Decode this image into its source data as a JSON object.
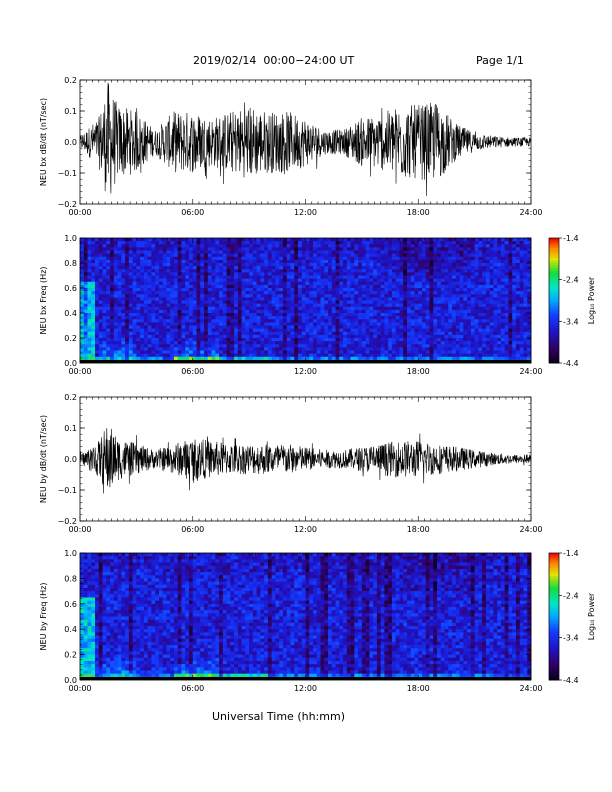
{
  "header": {
    "title": "2019/02/14  00:00−24:00 UT",
    "page": "Page 1/1"
  },
  "footer": {
    "xlabel": "Universal Time (hh:mm)"
  },
  "chart_data": [
    {
      "type": "line",
      "ylabel": "NEU bx dB/dt (nT/sec)",
      "xlim": [
        "00:00",
        "24:00"
      ],
      "x_ticks": [
        "00:00",
        "06:00",
        "12:00",
        "18:00",
        "24:00"
      ],
      "ylim": [
        -0.2,
        0.2
      ],
      "y_ticks": [
        "0.2",
        "0.1",
        "0.0",
        "−0.1",
        "−0.2"
      ],
      "series": [
        {
          "x_hours": [
            0,
            1,
            1.5,
            2,
            3,
            4,
            5,
            6,
            7,
            8,
            9,
            10,
            11,
            12,
            13,
            14,
            15,
            16,
            17,
            18,
            19,
            20,
            21,
            22,
            23,
            24
          ],
          "amplitude": [
            0.02,
            0.08,
            0.2,
            0.12,
            0.1,
            0.04,
            0.1,
            0.1,
            0.08,
            0.1,
            0.12,
            0.1,
            0.1,
            0.08,
            0.04,
            0.04,
            0.08,
            0.09,
            0.12,
            0.12,
            0.13,
            0.06,
            0.03,
            0.02,
            0.015,
            0.015
          ]
        }
      ]
    },
    {
      "type": "heatmap",
      "ylabel": "NEU bx Freq (Hz)",
      "xlim": [
        "00:00",
        "24:00"
      ],
      "x_ticks": [
        "00:00",
        "06:00",
        "12:00",
        "18:00",
        "24:00"
      ],
      "ylim": [
        0.0,
        1.0
      ],
      "y_ticks": [
        "1.0",
        "0.8",
        "0.6",
        "0.4",
        "0.2",
        "0.0"
      ],
      "colorbar": {
        "label": "Log₁₀ Power",
        "range": [
          -4.4,
          -1.4
        ],
        "ticks": [
          "-1.4",
          "-2.4",
          "-3.4",
          "-4.4"
        ]
      }
    },
    {
      "type": "line",
      "ylabel": "NEU by dB/dt (nT/sec)",
      "xlim": [
        "00:00",
        "24:00"
      ],
      "x_ticks": [
        "00:00",
        "06:00",
        "12:00",
        "18:00",
        "24:00"
      ],
      "ylim": [
        -0.2,
        0.2
      ],
      "y_ticks": [
        "0.2",
        "0.1",
        "0.0",
        "−0.1",
        "−0.2"
      ],
      "series": [
        {
          "x_hours": [
            0,
            1,
            1.5,
            2,
            3,
            4,
            5,
            6,
            7,
            8,
            9,
            10,
            11,
            12,
            13,
            14,
            15,
            16,
            17,
            18,
            19,
            20,
            21,
            22,
            23,
            24
          ],
          "amplitude": [
            0.015,
            0.06,
            0.12,
            0.07,
            0.05,
            0.03,
            0.05,
            0.07,
            0.06,
            0.05,
            0.05,
            0.05,
            0.05,
            0.04,
            0.03,
            0.03,
            0.04,
            0.05,
            0.06,
            0.06,
            0.05,
            0.04,
            0.03,
            0.02,
            0.015,
            0.015
          ]
        }
      ]
    },
    {
      "type": "heatmap",
      "ylabel": "NEU by Freq (Hz)",
      "xlim": [
        "00:00",
        "24:00"
      ],
      "x_ticks": [
        "00:00",
        "06:00",
        "12:00",
        "18:00",
        "24:00"
      ],
      "ylim": [
        0.0,
        1.0
      ],
      "y_ticks": [
        "1.0",
        "0.8",
        "0.6",
        "0.4",
        "0.2",
        "0.0"
      ],
      "colorbar": {
        "label": "Log₁₀ Power",
        "range": [
          -4.4,
          -1.4
        ],
        "ticks": [
          "-1.4",
          "-2.4",
          "-3.4",
          "-4.4"
        ]
      }
    }
  ]
}
